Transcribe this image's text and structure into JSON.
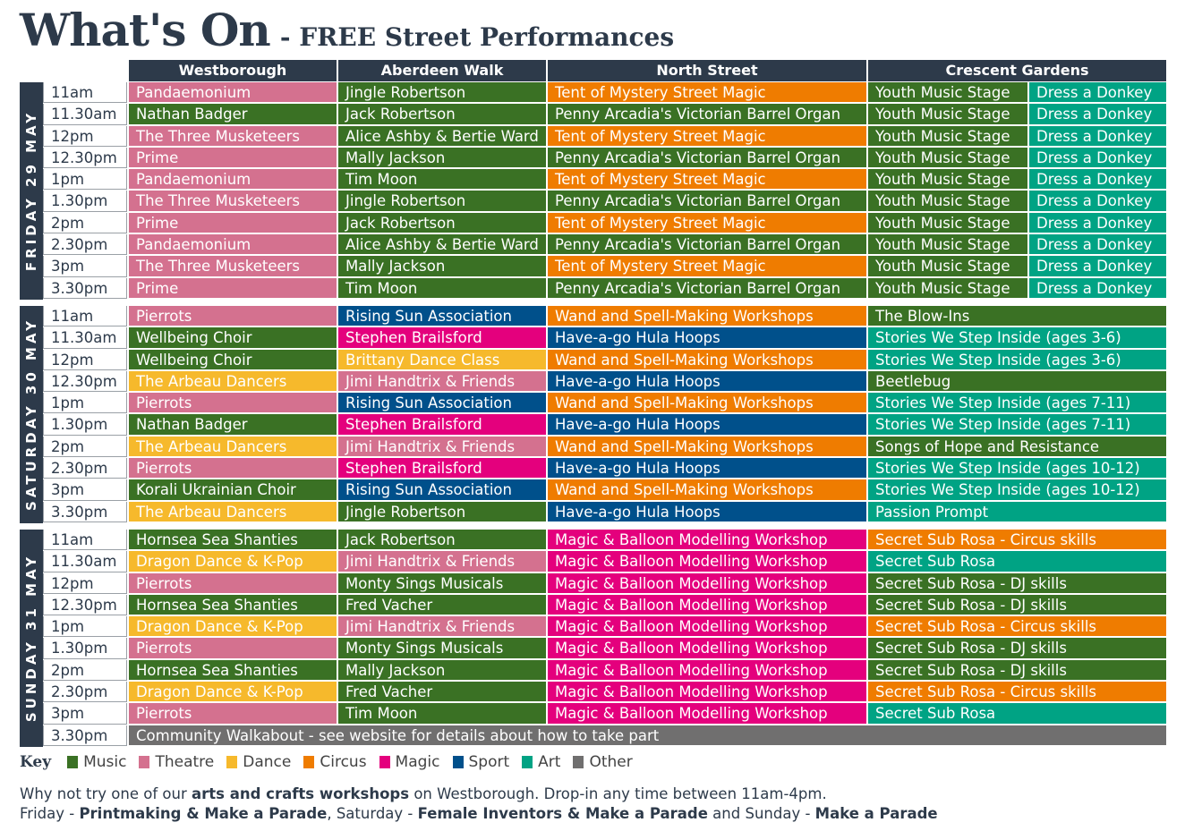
{
  "title": {
    "main": "What's On",
    "sub": "- FREE Street Performances"
  },
  "columns": [
    "Westborough",
    "Aberdeen Walk",
    "North Street",
    "Crescent Gardens"
  ],
  "colors": {
    "m": "#3a7124",
    "t": "#d4718f",
    "d": "#f6b92c",
    "c": "#ef7c00",
    "g": "#e4007d",
    "s": "#00508b",
    "a": "#00a384",
    "o": "#706f6f"
  },
  "days": [
    {
      "label": "FRIDAY 29 MAY",
      "rows": [
        {
          "time": "11am",
          "cells": [
            {
              "t": "Pandaemonium",
              "c": "t"
            },
            {
              "t": "Jingle Robertson",
              "c": "m"
            },
            {
              "t": "Tent of Mystery Street Magic",
              "c": "c"
            },
            {
              "t": "Youth Music Stage",
              "c": "m"
            },
            {
              "t": "Dress a Donkey",
              "c": "a"
            }
          ]
        },
        {
          "time": "11.30am",
          "cells": [
            {
              "t": "Nathan Badger",
              "c": "m"
            },
            {
              "t": "Jack Robertson",
              "c": "m"
            },
            {
              "t": "Penny Arcadia's Victorian Barrel Organ",
              "c": "m"
            },
            {
              "t": "Youth Music Stage",
              "c": "m"
            },
            {
              "t": "Dress a Donkey",
              "c": "a"
            }
          ]
        },
        {
          "time": "12pm",
          "cells": [
            {
              "t": "The Three Musketeers",
              "c": "t"
            },
            {
              "t": "Alice Ashby & Bertie Ward",
              "c": "m"
            },
            {
              "t": "Tent of Mystery Street Magic",
              "c": "c"
            },
            {
              "t": "Youth Music Stage",
              "c": "m"
            },
            {
              "t": "Dress a Donkey",
              "c": "a"
            }
          ]
        },
        {
          "time": "12.30pm",
          "cells": [
            {
              "t": "Prime",
              "c": "t"
            },
            {
              "t": "Mally Jackson",
              "c": "m"
            },
            {
              "t": "Penny Arcadia's Victorian Barrel Organ",
              "c": "m"
            },
            {
              "t": "Youth Music Stage",
              "c": "m"
            },
            {
              "t": "Dress a Donkey",
              "c": "a"
            }
          ]
        },
        {
          "time": "1pm",
          "cells": [
            {
              "t": "Pandaemonium",
              "c": "t"
            },
            {
              "t": "Tim Moon",
              "c": "m"
            },
            {
              "t": "Tent of Mystery Street Magic",
              "c": "c"
            },
            {
              "t": "Youth Music Stage",
              "c": "m"
            },
            {
              "t": "Dress a Donkey",
              "c": "a"
            }
          ]
        },
        {
          "time": "1.30pm",
          "cells": [
            {
              "t": "The Three Musketeers",
              "c": "t"
            },
            {
              "t": "Jingle Robertson",
              "c": "m"
            },
            {
              "t": "Penny Arcadia's Victorian Barrel Organ",
              "c": "m"
            },
            {
              "t": "Youth Music Stage",
              "c": "m"
            },
            {
              "t": "Dress a Donkey",
              "c": "a"
            }
          ]
        },
        {
          "time": "2pm",
          "cells": [
            {
              "t": "Prime",
              "c": "t"
            },
            {
              "t": "Jack Robertson",
              "c": "m"
            },
            {
              "t": "Tent of Mystery Street Magic",
              "c": "c"
            },
            {
              "t": "Youth Music Stage",
              "c": "m"
            },
            {
              "t": "Dress a Donkey",
              "c": "a"
            }
          ]
        },
        {
          "time": "2.30pm",
          "cells": [
            {
              "t": "Pandaemonium",
              "c": "t"
            },
            {
              "t": "Alice Ashby & Bertie Ward",
              "c": "m"
            },
            {
              "t": "Penny Arcadia's Victorian Barrel Organ",
              "c": "m"
            },
            {
              "t": "Youth Music Stage",
              "c": "m"
            },
            {
              "t": "Dress a Donkey",
              "c": "a"
            }
          ]
        },
        {
          "time": "3pm",
          "cells": [
            {
              "t": "The Three Musketeers",
              "c": "t"
            },
            {
              "t": "Mally Jackson",
              "c": "m"
            },
            {
              "t": "Tent of Mystery Street Magic",
              "c": "c"
            },
            {
              "t": "Youth Music Stage",
              "c": "m"
            },
            {
              "t": "Dress a Donkey",
              "c": "a"
            }
          ]
        },
        {
          "time": "3.30pm",
          "cells": [
            {
              "t": "Prime",
              "c": "t"
            },
            {
              "t": "Tim Moon",
              "c": "m"
            },
            {
              "t": "Penny Arcadia's Victorian Barrel Organ",
              "c": "m"
            },
            {
              "t": "Youth Music Stage",
              "c": "m"
            },
            {
              "t": "Dress a Donkey",
              "c": "a"
            }
          ]
        }
      ]
    },
    {
      "label": "SATURDAY 30 MAY",
      "rows": [
        {
          "time": "11am",
          "cells": [
            {
              "t": "Pierrots",
              "c": "t"
            },
            {
              "t": "Rising Sun Association",
              "c": "s"
            },
            {
              "t": "Wand and Spell-Making Workshops",
              "c": "c"
            },
            {
              "t": "The Blow-Ins",
              "c": "m",
              "span": 2
            }
          ]
        },
        {
          "time": "11.30am",
          "cells": [
            {
              "t": "Wellbeing Choir",
              "c": "m"
            },
            {
              "t": "Stephen Brailsford",
              "c": "g"
            },
            {
              "t": "Have-a-go Hula Hoops",
              "c": "s"
            },
            {
              "t": "Stories We Step Inside (ages 3-6)",
              "c": "a",
              "span": 2
            }
          ]
        },
        {
          "time": "12pm",
          "cells": [
            {
              "t": "Wellbeing Choir",
              "c": "m"
            },
            {
              "t": "Brittany Dance Class",
              "c": "d"
            },
            {
              "t": "Wand and Spell-Making Workshops",
              "c": "c"
            },
            {
              "t": "Stories We Step Inside (ages 3-6)",
              "c": "a",
              "span": 2
            }
          ]
        },
        {
          "time": "12.30pm",
          "cells": [
            {
              "t": "The Arbeau Dancers",
              "c": "d"
            },
            {
              "t": "Jimi Handtrix & Friends",
              "c": "t"
            },
            {
              "t": "Have-a-go Hula Hoops",
              "c": "s"
            },
            {
              "t": "Beetlebug",
              "c": "m",
              "span": 2
            }
          ]
        },
        {
          "time": "1pm",
          "cells": [
            {
              "t": "Pierrots",
              "c": "t"
            },
            {
              "t": "Rising Sun Association",
              "c": "s"
            },
            {
              "t": "Wand and Spell-Making Workshops",
              "c": "c"
            },
            {
              "t": "Stories We Step Inside (ages 7-11)",
              "c": "a",
              "span": 2
            }
          ]
        },
        {
          "time": "1.30pm",
          "cells": [
            {
              "t": "Nathan Badger",
              "c": "m"
            },
            {
              "t": "Stephen Brailsford",
              "c": "g"
            },
            {
              "t": "Have-a-go Hula Hoops",
              "c": "s"
            },
            {
              "t": "Stories We Step Inside (ages 7-11)",
              "c": "a",
              "span": 2
            }
          ]
        },
        {
          "time": "2pm",
          "cells": [
            {
              "t": "The Arbeau Dancers",
              "c": "d"
            },
            {
              "t": "Jimi Handtrix & Friends",
              "c": "t"
            },
            {
              "t": "Wand and Spell-Making Workshops",
              "c": "c"
            },
            {
              "t": "Songs of Hope and Resistance",
              "c": "m",
              "span": 2
            }
          ]
        },
        {
          "time": "2.30pm",
          "cells": [
            {
              "t": "Pierrots",
              "c": "t"
            },
            {
              "t": "Stephen Brailsford",
              "c": "g"
            },
            {
              "t": "Have-a-go Hula Hoops",
              "c": "s"
            },
            {
              "t": "Stories We Step Inside (ages 10-12)",
              "c": "a",
              "span": 2
            }
          ]
        },
        {
          "time": "3pm",
          "cells": [
            {
              "t": "Korali Ukrainian Choir",
              "c": "m"
            },
            {
              "t": "Rising Sun Association",
              "c": "s"
            },
            {
              "t": "Wand and Spell-Making Workshops",
              "c": "c"
            },
            {
              "t": "Stories We Step Inside (ages 10-12)",
              "c": "a",
              "span": 2
            }
          ]
        },
        {
          "time": "3.30pm",
          "cells": [
            {
              "t": "The Arbeau Dancers",
              "c": "d"
            },
            {
              "t": "Jingle Robertson",
              "c": "m"
            },
            {
              "t": "Have-a-go Hula Hoops",
              "c": "s"
            },
            {
              "t": "Passion Prompt",
              "c": "a",
              "span": 2
            }
          ]
        }
      ]
    },
    {
      "label": "SUNDAY 31 MAY",
      "rows": [
        {
          "time": "11am",
          "cells": [
            {
              "t": "Hornsea Sea Shanties",
              "c": "m"
            },
            {
              "t": "Jack Robertson",
              "c": "m"
            },
            {
              "t": "Magic & Balloon Modelling Workshop",
              "c": "g"
            },
            {
              "t": "Secret Sub Rosa - Circus skills",
              "c": "c",
              "span": 2
            }
          ]
        },
        {
          "time": "11.30am",
          "cells": [
            {
              "t": "Dragon Dance & K-Pop",
              "c": "d"
            },
            {
              "t": "Jimi Handtrix & Friends",
              "c": "t"
            },
            {
              "t": "Magic & Balloon Modelling Workshop",
              "c": "g"
            },
            {
              "t": "Secret Sub Rosa",
              "c": "a",
              "span": 2
            }
          ]
        },
        {
          "time": "12pm",
          "cells": [
            {
              "t": "Pierrots",
              "c": "t"
            },
            {
              "t": "Monty Sings Musicals",
              "c": "m"
            },
            {
              "t": "Magic & Balloon Modelling Workshop",
              "c": "g"
            },
            {
              "t": "Secret Sub Rosa - DJ skills",
              "c": "m",
              "span": 2
            }
          ]
        },
        {
          "time": "12.30pm",
          "cells": [
            {
              "t": "Hornsea Sea Shanties",
              "c": "m"
            },
            {
              "t": "Fred Vacher",
              "c": "m"
            },
            {
              "t": "Magic & Balloon Modelling Workshop",
              "c": "g"
            },
            {
              "t": "Secret Sub Rosa - DJ skills",
              "c": "m",
              "span": 2
            }
          ]
        },
        {
          "time": "1pm",
          "cells": [
            {
              "t": "Dragon Dance & K-Pop",
              "c": "d"
            },
            {
              "t": "Jimi Handtrix & Friends",
              "c": "t"
            },
            {
              "t": "Magic & Balloon Modelling Workshop",
              "c": "g"
            },
            {
              "t": "Secret Sub Rosa - Circus skills",
              "c": "c",
              "span": 2
            }
          ]
        },
        {
          "time": "1.30pm",
          "cells": [
            {
              "t": "Pierrots",
              "c": "t"
            },
            {
              "t": "Monty Sings Musicals",
              "c": "m"
            },
            {
              "t": "Magic & Balloon Modelling Workshop",
              "c": "g"
            },
            {
              "t": "Secret Sub Rosa - DJ skills",
              "c": "m",
              "span": 2
            }
          ]
        },
        {
          "time": "2pm",
          "cells": [
            {
              "t": "Hornsea Sea Shanties",
              "c": "m"
            },
            {
              "t": "Mally Jackson",
              "c": "m"
            },
            {
              "t": "Magic & Balloon Modelling Workshop",
              "c": "g"
            },
            {
              "t": "Secret Sub Rosa - DJ skills",
              "c": "m",
              "span": 2
            }
          ]
        },
        {
          "time": "2.30pm",
          "cells": [
            {
              "t": "Dragon Dance & K-Pop",
              "c": "d"
            },
            {
              "t": "Fred Vacher",
              "c": "m"
            },
            {
              "t": "Magic & Balloon Modelling Workshop",
              "c": "g"
            },
            {
              "t": "Secret Sub Rosa - Circus skills",
              "c": "c",
              "span": 2
            }
          ]
        },
        {
          "time": "3pm",
          "cells": [
            {
              "t": "Pierrots",
              "c": "t"
            },
            {
              "t": "Tim Moon",
              "c": "m"
            },
            {
              "t": "Magic & Balloon Modelling Workshop",
              "c": "g"
            },
            {
              "t": "Secret Sub Rosa",
              "c": "a",
              "span": 2
            }
          ]
        },
        {
          "time": "3.30pm",
          "cells": [
            {
              "t": "Community Walkabout - see website for details about how to take part",
              "c": "o",
              "span": 5
            }
          ]
        }
      ]
    }
  ],
  "key": {
    "label": "Key",
    "items": [
      {
        "c": "m",
        "label": "Music"
      },
      {
        "c": "t",
        "label": "Theatre"
      },
      {
        "c": "d",
        "label": "Dance"
      },
      {
        "c": "c",
        "label": "Circus"
      },
      {
        "c": "g",
        "label": "Magic"
      },
      {
        "c": "s",
        "label": "Sport"
      },
      {
        "c": "a",
        "label": "Art"
      },
      {
        "c": "o",
        "label": "Other"
      }
    ]
  },
  "footer": {
    "lines": [
      [
        {
          "t": "Why not try one of our ",
          "b": false
        },
        {
          "t": "arts and crafts workshops",
          "b": true
        },
        {
          "t": " on Westborough. Drop-in any time between 11am-4pm.",
          "b": false
        }
      ],
      [
        {
          "t": "Friday - ",
          "b": false
        },
        {
          "t": "Printmaking & Make a Parade",
          "b": true
        },
        {
          "t": ", Saturday - ",
          "b": false
        },
        {
          "t": "Female Inventors & Make a Parade",
          "b": true
        },
        {
          "t": " and Sunday - ",
          "b": false
        },
        {
          "t": "Make a Parade",
          "b": true
        }
      ]
    ]
  }
}
